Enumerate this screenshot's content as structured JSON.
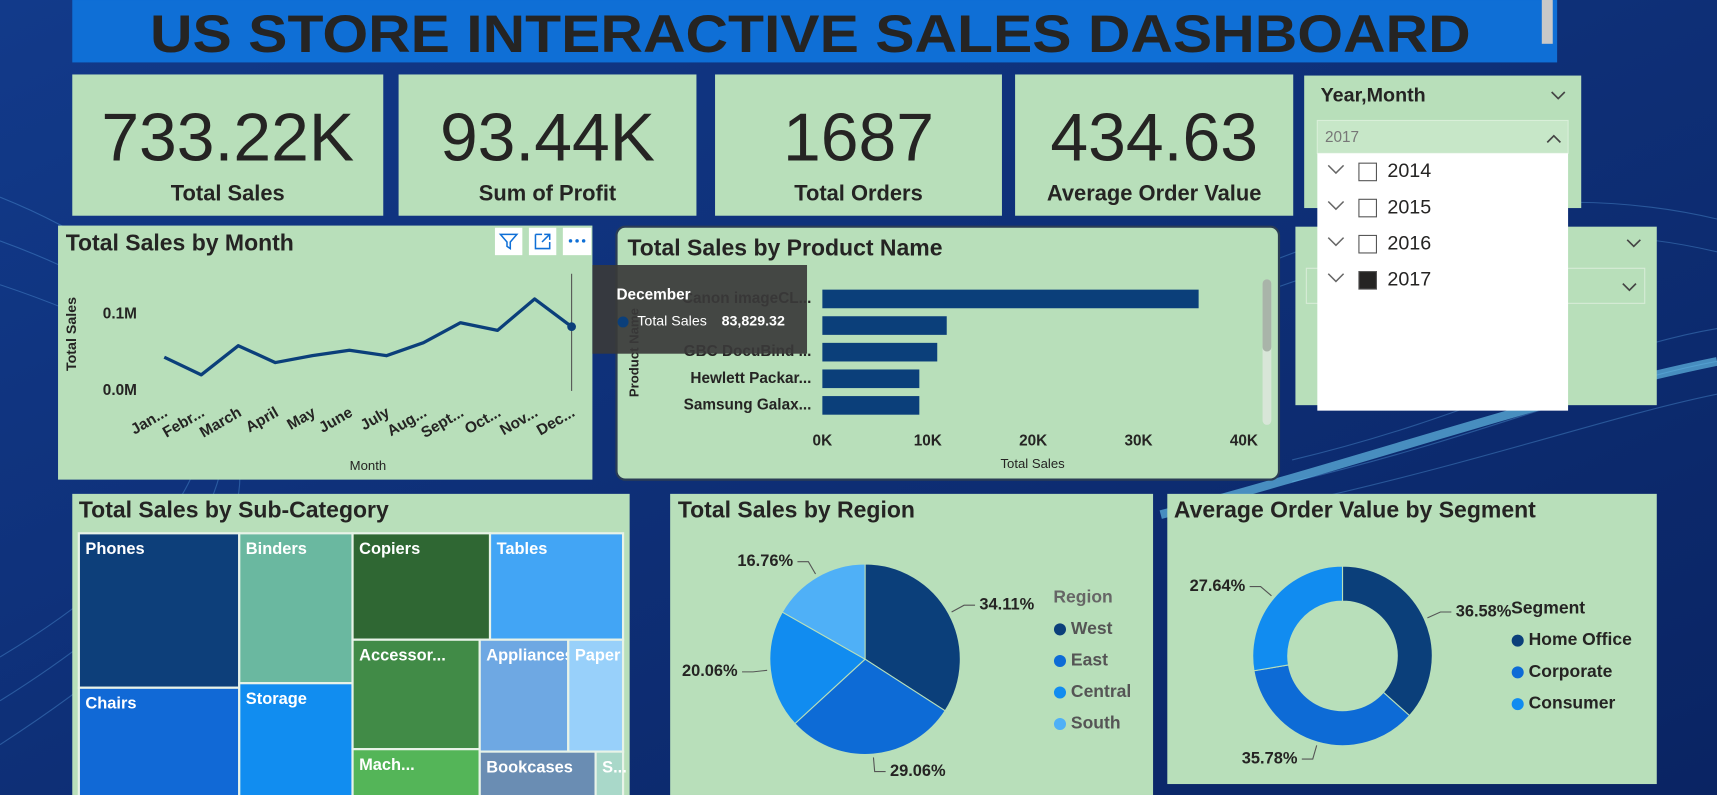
{
  "header": {
    "title": "US STORE INTERACTIVE SALES DASHBOARD"
  },
  "kpis": [
    {
      "value": "733.22K",
      "label": "Total Sales"
    },
    {
      "value": "93.44K",
      "label": "Sum of Profit"
    },
    {
      "value": "1687",
      "label": "Total Orders"
    },
    {
      "value": "434.63",
      "label": "Average Order Value"
    }
  ],
  "slicer": {
    "title": "Year,Month",
    "selected": "2017",
    "options": [
      {
        "label": "2014",
        "checked": false
      },
      {
        "label": "2015",
        "checked": false
      },
      {
        "label": "2016",
        "checked": false
      },
      {
        "label": "2017",
        "checked": true
      }
    ]
  },
  "line_chart": {
    "type": "line",
    "title": "Total Sales by Month",
    "x_label": "Month",
    "y_label": "Total Sales",
    "categories": [
      "Jan...",
      "Febr...",
      "March",
      "April",
      "May",
      "June",
      "July",
      "Aug...",
      "Sept...",
      "Oct...",
      "Nov...",
      "Dec..."
    ],
    "values": [
      44000,
      21000,
      59000,
      37000,
      46000,
      53000,
      46000,
      63000,
      89000,
      79000,
      120000,
      83829.32
    ],
    "color": "#0b3f7a",
    "ylim": [
      0,
      150000
    ],
    "yticks": [
      {
        "value": 0,
        "label": "0.0M"
      },
      {
        "value": 100000,
        "label": "0.1M"
      }
    ],
    "tooltip": {
      "title": "December",
      "series": "Total Sales",
      "value_label": "83,829.32"
    }
  },
  "bar_chart": {
    "type": "bar",
    "title": "Total Sales by Product Name",
    "x_label": "Total Sales",
    "y_label": "Product Name",
    "categories": [
      "Canon imageCL...",
      null,
      "GBC DocuBind ...",
      "Hewlett Packar...",
      "Samsung Galax..."
    ],
    "values": [
      35700,
      11800,
      10900,
      9200,
      9200
    ],
    "color": "#0b3f7a",
    "xlim": [
      0,
      40000
    ],
    "xticks": [
      {
        "value": 0,
        "label": "0K"
      },
      {
        "value": 10000,
        "label": "10K"
      },
      {
        "value": 20000,
        "label": "20K"
      },
      {
        "value": 30000,
        "label": "30K"
      },
      {
        "value": 40000,
        "label": "40K"
      }
    ]
  },
  "treemap": {
    "type": "treemap",
    "title": "Total Sales by Sub-Category",
    "items": [
      {
        "name": "Phones",
        "value": 105000,
        "color": "#0d3f7a"
      },
      {
        "name": "Chairs",
        "value": 96000,
        "color": "#1169d6"
      },
      {
        "name": "Binders",
        "value": 72000,
        "color": "#6ab8a0"
      },
      {
        "name": "Storage",
        "value": 70000,
        "color": "#118df0"
      },
      {
        "name": "Copiers",
        "value": 62000,
        "color": "#2f6733"
      },
      {
        "name": "Tables",
        "value": 60000,
        "color": "#42a5f5"
      },
      {
        "name": "Accessor...",
        "value": 59000,
        "color": "#418b47"
      },
      {
        "name": "Mach...",
        "value": 43000,
        "color": "#54b558"
      },
      {
        "name": "Appliances",
        "value": 42000,
        "color": "#6ea8e3"
      },
      {
        "name": "Paper",
        "value": 26000,
        "color": "#98d0fa"
      },
      {
        "name": "Bookcases",
        "value": 38000,
        "color": "#6a8db3"
      },
      {
        "name": "S...",
        "value": 9000,
        "color": "#a9d8c9"
      }
    ]
  },
  "pie_chart": {
    "type": "pie",
    "title": "Total Sales by Region",
    "legend_title": "Region",
    "categories": [
      "West",
      "East",
      "Central",
      "South"
    ],
    "values": [
      34.11,
      29.06,
      20.06,
      16.76
    ],
    "value_labels": [
      "34.11%",
      "29.06%",
      "20.06%",
      "16.76%"
    ],
    "colors": [
      "#0b3f7a",
      "#0d6bd6",
      "#118cf0",
      "#4fb0f7"
    ]
  },
  "donut_chart": {
    "type": "donut",
    "title": "Average Order Value by Segment",
    "legend_title": "Segment",
    "categories": [
      "Home Office",
      "Corporate",
      "Consumer"
    ],
    "values": [
      36.58,
      35.78,
      27.64
    ],
    "value_labels": [
      "36.58%",
      "35.78%",
      "27.64%"
    ],
    "colors": [
      "#0b3f7a",
      "#0d6bd6",
      "#118cf0"
    ]
  }
}
